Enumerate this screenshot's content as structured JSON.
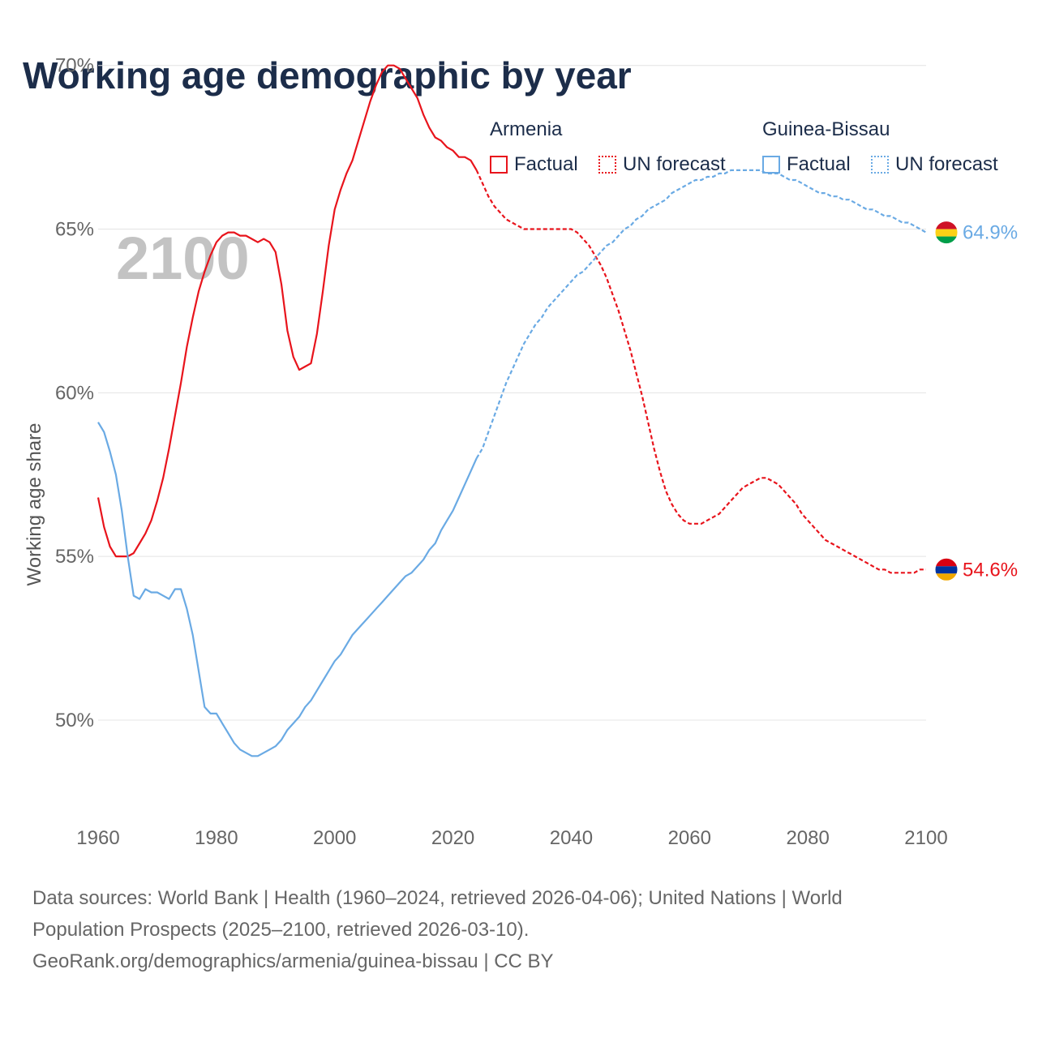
{
  "title": "Working age demographic by year",
  "legend": {
    "groups": [
      {
        "name": "Armenia",
        "color": "#e8141c",
        "factual_label": "Factual",
        "forecast_label": "UN forecast"
      },
      {
        "name": "Guinea-Bissau",
        "color": "#6aaae4",
        "factual_label": "Factual",
        "forecast_label": "UN forecast"
      }
    ]
  },
  "chart_data": {
    "type": "line",
    "title": "Working age demographic by year",
    "year_label": "2100",
    "xlabel": "",
    "ylabel": "Working age share",
    "xlim": [
      1960,
      2100
    ],
    "ylim": [
      47.1,
      72
    ],
    "x_ticks": [
      1960,
      1980,
      2000,
      2020,
      2040,
      2060,
      2080,
      2100
    ],
    "y_ticks": [
      50,
      55,
      60,
      65,
      70
    ],
    "y_tick_labels": [
      "50%",
      "55%",
      "60%",
      "65%",
      "70%"
    ],
    "grid": true,
    "factual_end_year": 2024,
    "series": [
      {
        "name": "Armenia",
        "color": "#e8141c",
        "end_label": "54.6%",
        "end_value": 54.6,
        "flag": [
          "#d90012",
          "#0033a0",
          "#f2a800"
        ],
        "points": [
          [
            1960,
            56.8
          ],
          [
            1961,
            55.9
          ],
          [
            1962,
            55.3
          ],
          [
            1963,
            55.0
          ],
          [
            1964,
            55.0
          ],
          [
            1965,
            55.0
          ],
          [
            1966,
            55.1
          ],
          [
            1967,
            55.4
          ],
          [
            1968,
            55.7
          ],
          [
            1969,
            56.1
          ],
          [
            1970,
            56.7
          ],
          [
            1971,
            57.4
          ],
          [
            1972,
            58.3
          ],
          [
            1973,
            59.3
          ],
          [
            1974,
            60.3
          ],
          [
            1975,
            61.4
          ],
          [
            1976,
            62.3
          ],
          [
            1977,
            63.1
          ],
          [
            1978,
            63.7
          ],
          [
            1979,
            64.2
          ],
          [
            1980,
            64.6
          ],
          [
            1981,
            64.8
          ],
          [
            1982,
            64.9
          ],
          [
            1983,
            64.9
          ],
          [
            1984,
            64.8
          ],
          [
            1985,
            64.8
          ],
          [
            1986,
            64.7
          ],
          [
            1987,
            64.6
          ],
          [
            1988,
            64.7
          ],
          [
            1989,
            64.6
          ],
          [
            1990,
            64.3
          ],
          [
            1991,
            63.3
          ],
          [
            1992,
            61.9
          ],
          [
            1993,
            61.1
          ],
          [
            1994,
            60.7
          ],
          [
            1995,
            60.8
          ],
          [
            1996,
            60.9
          ],
          [
            1997,
            61.8
          ],
          [
            1998,
            63.1
          ],
          [
            1999,
            64.5
          ],
          [
            2000,
            65.6
          ],
          [
            2001,
            66.2
          ],
          [
            2002,
            66.7
          ],
          [
            2003,
            67.1
          ],
          [
            2004,
            67.7
          ],
          [
            2005,
            68.3
          ],
          [
            2006,
            68.9
          ],
          [
            2007,
            69.4
          ],
          [
            2008,
            69.8
          ],
          [
            2009,
            70.0
          ],
          [
            2010,
            70.0
          ],
          [
            2011,
            69.9
          ],
          [
            2012,
            69.6
          ],
          [
            2013,
            69.3
          ],
          [
            2014,
            69.0
          ],
          [
            2015,
            68.5
          ],
          [
            2016,
            68.1
          ],
          [
            2017,
            67.8
          ],
          [
            2018,
            67.7
          ],
          [
            2019,
            67.5
          ],
          [
            2020,
            67.4
          ],
          [
            2021,
            67.2
          ],
          [
            2022,
            67.2
          ],
          [
            2023,
            67.1
          ],
          [
            2024,
            66.8
          ],
          [
            2025,
            66.4
          ],
          [
            2026,
            66.0
          ],
          [
            2027,
            65.7
          ],
          [
            2028,
            65.5
          ],
          [
            2029,
            65.3
          ],
          [
            2030,
            65.2
          ],
          [
            2031,
            65.1
          ],
          [
            2032,
            65.0
          ],
          [
            2033,
            65.0
          ],
          [
            2034,
            65.0
          ],
          [
            2035,
            65.0
          ],
          [
            2036,
            65.0
          ],
          [
            2037,
            65.0
          ],
          [
            2038,
            65.0
          ],
          [
            2039,
            65.0
          ],
          [
            2040,
            65.0
          ],
          [
            2041,
            64.9
          ],
          [
            2042,
            64.7
          ],
          [
            2043,
            64.5
          ],
          [
            2044,
            64.2
          ],
          [
            2045,
            63.9
          ],
          [
            2046,
            63.5
          ],
          [
            2047,
            63.0
          ],
          [
            2048,
            62.5
          ],
          [
            2049,
            61.9
          ],
          [
            2050,
            61.3
          ],
          [
            2051,
            60.6
          ],
          [
            2052,
            59.9
          ],
          [
            2053,
            59.1
          ],
          [
            2054,
            58.3
          ],
          [
            2055,
            57.6
          ],
          [
            2056,
            57.0
          ],
          [
            2057,
            56.6
          ],
          [
            2058,
            56.3
          ],
          [
            2059,
            56.1
          ],
          [
            2060,
            56.0
          ],
          [
            2061,
            56.0
          ],
          [
            2062,
            56.0
          ],
          [
            2063,
            56.1
          ],
          [
            2064,
            56.2
          ],
          [
            2065,
            56.3
          ],
          [
            2066,
            56.5
          ],
          [
            2067,
            56.7
          ],
          [
            2068,
            56.9
          ],
          [
            2069,
            57.1
          ],
          [
            2070,
            57.2
          ],
          [
            2071,
            57.3
          ],
          [
            2072,
            57.4
          ],
          [
            2073,
            57.4
          ],
          [
            2074,
            57.3
          ],
          [
            2075,
            57.2
          ],
          [
            2076,
            57.0
          ],
          [
            2077,
            56.8
          ],
          [
            2078,
            56.6
          ],
          [
            2079,
            56.3
          ],
          [
            2080,
            56.1
          ],
          [
            2081,
            55.9
          ],
          [
            2082,
            55.7
          ],
          [
            2083,
            55.5
          ],
          [
            2084,
            55.4
          ],
          [
            2085,
            55.3
          ],
          [
            2086,
            55.2
          ],
          [
            2087,
            55.1
          ],
          [
            2088,
            55.0
          ],
          [
            2089,
            54.9
          ],
          [
            2090,
            54.8
          ],
          [
            2091,
            54.7
          ],
          [
            2092,
            54.6
          ],
          [
            2093,
            54.6
          ],
          [
            2094,
            54.5
          ],
          [
            2095,
            54.5
          ],
          [
            2096,
            54.5
          ],
          [
            2097,
            54.5
          ],
          [
            2098,
            54.5
          ],
          [
            2099,
            54.6
          ],
          [
            2100,
            54.6
          ]
        ]
      },
      {
        "name": "Guinea-Bissau",
        "color": "#6aaae4",
        "end_label": "64.9%",
        "end_value": 64.9,
        "flag": [
          "#ce1126",
          "#fcd116",
          "#009e49"
        ],
        "points": [
          [
            1960,
            59.1
          ],
          [
            1961,
            58.8
          ],
          [
            1962,
            58.2
          ],
          [
            1963,
            57.5
          ],
          [
            1964,
            56.4
          ],
          [
            1965,
            55.0
          ],
          [
            1966,
            53.8
          ],
          [
            1967,
            53.7
          ],
          [
            1968,
            54.0
          ],
          [
            1969,
            53.9
          ],
          [
            1970,
            53.9
          ],
          [
            1971,
            53.8
          ],
          [
            1972,
            53.7
          ],
          [
            1973,
            54.0
          ],
          [
            1974,
            54.0
          ],
          [
            1975,
            53.4
          ],
          [
            1976,
            52.6
          ],
          [
            1977,
            51.5
          ],
          [
            1978,
            50.4
          ],
          [
            1979,
            50.2
          ],
          [
            1980,
            50.2
          ],
          [
            1981,
            49.9
          ],
          [
            1982,
            49.6
          ],
          [
            1983,
            49.3
          ],
          [
            1984,
            49.1
          ],
          [
            1985,
            49.0
          ],
          [
            1986,
            48.9
          ],
          [
            1987,
            48.9
          ],
          [
            1988,
            49.0
          ],
          [
            1989,
            49.1
          ],
          [
            1990,
            49.2
          ],
          [
            1991,
            49.4
          ],
          [
            1992,
            49.7
          ],
          [
            1993,
            49.9
          ],
          [
            1994,
            50.1
          ],
          [
            1995,
            50.4
          ],
          [
            1996,
            50.6
          ],
          [
            1997,
            50.9
          ],
          [
            1998,
            51.2
          ],
          [
            1999,
            51.5
          ],
          [
            2000,
            51.8
          ],
          [
            2001,
            52.0
          ],
          [
            2002,
            52.3
          ],
          [
            2003,
            52.6
          ],
          [
            2004,
            52.8
          ],
          [
            2005,
            53.0
          ],
          [
            2006,
            53.2
          ],
          [
            2007,
            53.4
          ],
          [
            2008,
            53.6
          ],
          [
            2009,
            53.8
          ],
          [
            2010,
            54.0
          ],
          [
            2011,
            54.2
          ],
          [
            2012,
            54.4
          ],
          [
            2013,
            54.5
          ],
          [
            2014,
            54.7
          ],
          [
            2015,
            54.9
          ],
          [
            2016,
            55.2
          ],
          [
            2017,
            55.4
          ],
          [
            2018,
            55.8
          ],
          [
            2019,
            56.1
          ],
          [
            2020,
            56.4
          ],
          [
            2021,
            56.8
          ],
          [
            2022,
            57.2
          ],
          [
            2023,
            57.6
          ],
          [
            2024,
            58.0
          ],
          [
            2025,
            58.3
          ],
          [
            2026,
            58.8
          ],
          [
            2027,
            59.3
          ],
          [
            2028,
            59.8
          ],
          [
            2029,
            60.3
          ],
          [
            2030,
            60.7
          ],
          [
            2031,
            61.1
          ],
          [
            2032,
            61.5
          ],
          [
            2033,
            61.8
          ],
          [
            2034,
            62.1
          ],
          [
            2035,
            62.3
          ],
          [
            2036,
            62.6
          ],
          [
            2037,
            62.8
          ],
          [
            2038,
            63.0
          ],
          [
            2039,
            63.2
          ],
          [
            2040,
            63.4
          ],
          [
            2041,
            63.6
          ],
          [
            2042,
            63.7
          ],
          [
            2043,
            63.9
          ],
          [
            2044,
            64.1
          ],
          [
            2045,
            64.3
          ],
          [
            2046,
            64.5
          ],
          [
            2047,
            64.6
          ],
          [
            2048,
            64.8
          ],
          [
            2049,
            65.0
          ],
          [
            2050,
            65.1
          ],
          [
            2051,
            65.3
          ],
          [
            2052,
            65.4
          ],
          [
            2053,
            65.6
          ],
          [
            2054,
            65.7
          ],
          [
            2055,
            65.8
          ],
          [
            2056,
            65.9
          ],
          [
            2057,
            66.1
          ],
          [
            2058,
            66.2
          ],
          [
            2059,
            66.3
          ],
          [
            2060,
            66.4
          ],
          [
            2061,
            66.5
          ],
          [
            2062,
            66.5
          ],
          [
            2063,
            66.6
          ],
          [
            2064,
            66.6
          ],
          [
            2065,
            66.7
          ],
          [
            2066,
            66.7
          ],
          [
            2067,
            66.8
          ],
          [
            2068,
            66.8
          ],
          [
            2069,
            66.8
          ],
          [
            2070,
            66.8
          ],
          [
            2071,
            66.8
          ],
          [
            2072,
            66.8
          ],
          [
            2073,
            66.7
          ],
          [
            2074,
            66.7
          ],
          [
            2075,
            66.7
          ],
          [
            2076,
            66.6
          ],
          [
            2077,
            66.5
          ],
          [
            2078,
            66.5
          ],
          [
            2079,
            66.4
          ],
          [
            2080,
            66.3
          ],
          [
            2081,
            66.2
          ],
          [
            2082,
            66.1
          ],
          [
            2083,
            66.1
          ],
          [
            2084,
            66.0
          ],
          [
            2085,
            66.0
          ],
          [
            2086,
            65.9
          ],
          [
            2087,
            65.9
          ],
          [
            2088,
            65.8
          ],
          [
            2089,
            65.7
          ],
          [
            2090,
            65.6
          ],
          [
            2091,
            65.6
          ],
          [
            2092,
            65.5
          ],
          [
            2093,
            65.4
          ],
          [
            2094,
            65.4
          ],
          [
            2095,
            65.3
          ],
          [
            2096,
            65.2
          ],
          [
            2097,
            65.2
          ],
          [
            2098,
            65.1
          ],
          [
            2099,
            65.0
          ],
          [
            2100,
            64.9
          ]
        ]
      }
    ]
  },
  "sources": {
    "line1": "Data sources: World Bank | Health (1960–2024, retrieved 2026-04-06); United Nations | World",
    "line2": "Population Prospects (2025–2100, retrieved 2026-03-10).",
    "line3": "GeoRank.org/demographics/armenia/guinea-bissau | CC BY"
  }
}
